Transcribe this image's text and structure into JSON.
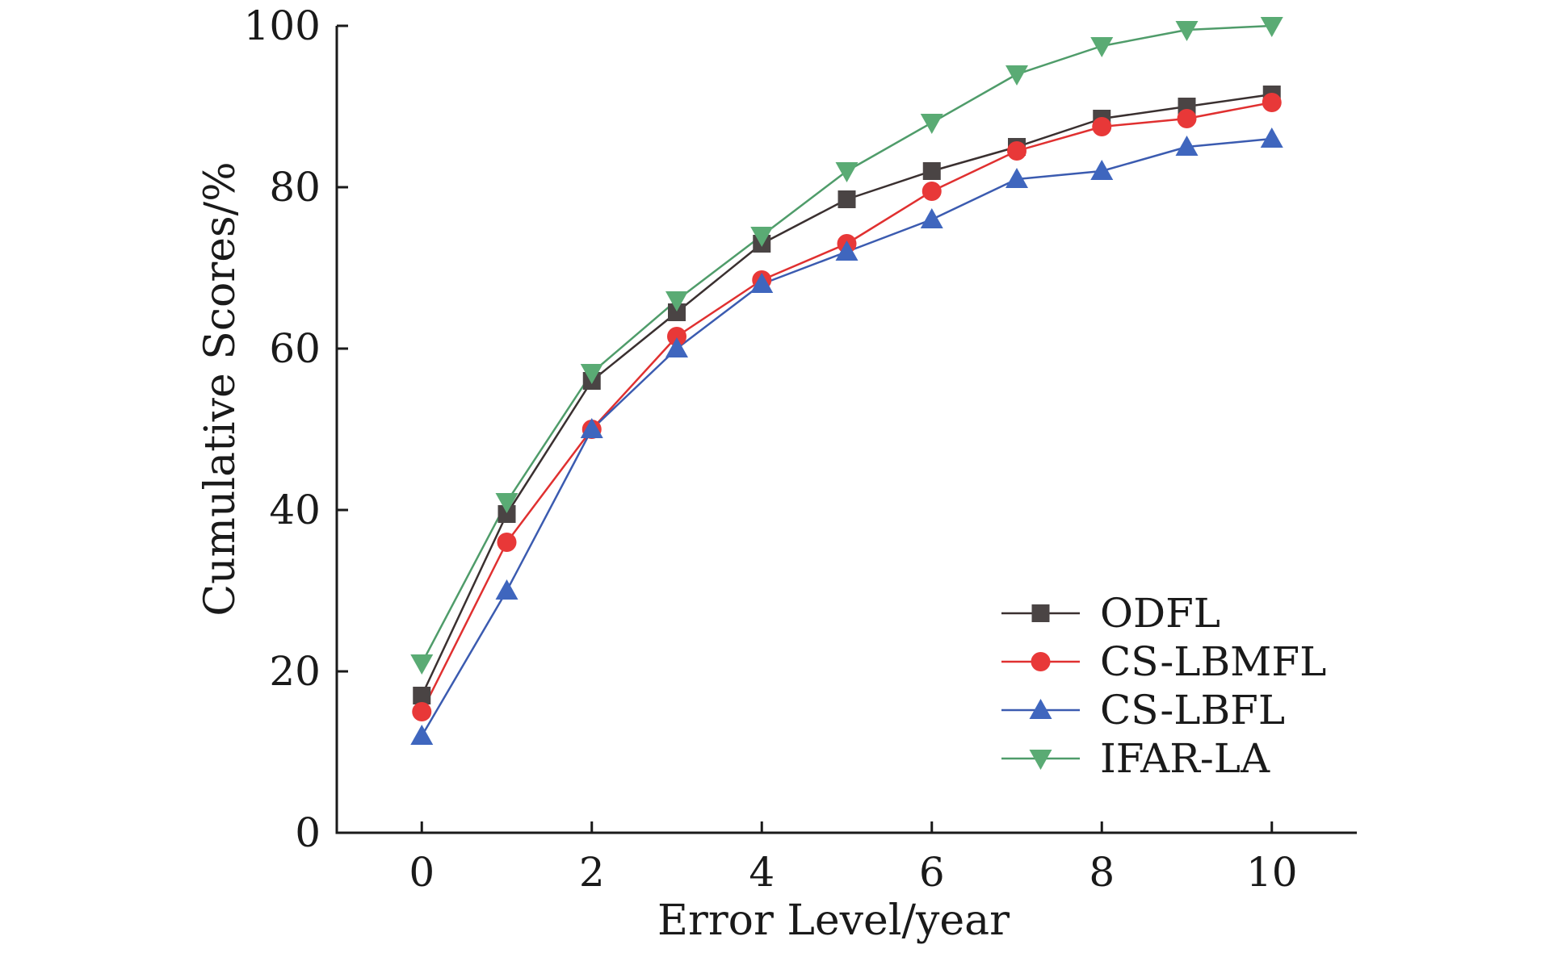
{
  "chart_data": {
    "type": "line",
    "xlabel": "Error Level/year",
    "ylabel": "Cumulative Scores/%",
    "xlim": [
      -1,
      11
    ],
    "ylim": [
      0,
      100
    ],
    "x_ticks": [
      0,
      2,
      4,
      6,
      8,
      10
    ],
    "y_ticks": [
      0,
      20,
      40,
      60,
      80,
      100
    ],
    "x": [
      0,
      1,
      2,
      3,
      4,
      5,
      6,
      7,
      8,
      9,
      10
    ],
    "grid": false,
    "legend_position": "bottom-right",
    "series": [
      {
        "name": "ODFL",
        "marker": "square",
        "line_color": "#3a3030",
        "marker_color": "#4a4444",
        "values": [
          17,
          39.5,
          56,
          64.5,
          73,
          78.5,
          82,
          85,
          88.5,
          90,
          91.5
        ]
      },
      {
        "name": "CS-LBMFL",
        "marker": "circle",
        "line_color": "#e03030",
        "marker_color": "#e83838",
        "values": [
          15,
          36,
          50,
          61.5,
          68.5,
          73,
          79.5,
          84.5,
          87.5,
          88.5,
          90.5
        ]
      },
      {
        "name": "CS-LBFL",
        "marker": "triangle-up",
        "line_color": "#3b5bb0",
        "marker_color": "#3f66be",
        "values": [
          12,
          30,
          50,
          60,
          68,
          72,
          76,
          81,
          82,
          85,
          86
        ]
      },
      {
        "name": "IFAR-LA",
        "marker": "triangle-down",
        "line_color": "#4f9c6a",
        "marker_color": "#5aab74",
        "values": [
          21,
          41,
          57,
          66,
          74,
          82,
          88,
          94,
          97.5,
          99.5,
          100
        ]
      }
    ]
  }
}
